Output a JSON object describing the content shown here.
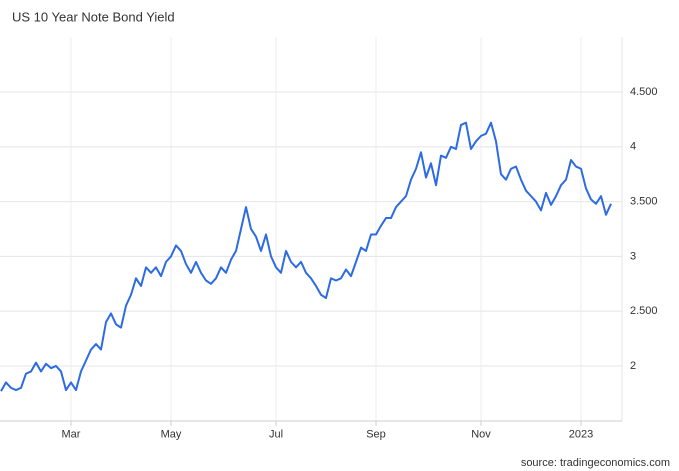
{
  "chart_data": {
    "type": "line",
    "title": "US 10 Year Note Bond Yield",
    "source": "source: tradingeconomics.com",
    "categories": [
      null,
      null,
      null,
      null,
      null,
      null,
      null,
      null,
      null,
      null,
      null,
      null,
      null,
      null,
      "Mar",
      null,
      null,
      null,
      null,
      null,
      null,
      null,
      null,
      null,
      null,
      null,
      null,
      null,
      null,
      null,
      null,
      null,
      null,
      null,
      "May",
      null,
      null,
      null,
      null,
      null,
      null,
      null,
      null,
      null,
      null,
      null,
      null,
      null,
      null,
      null,
      null,
      null,
      null,
      null,
      null,
      "Jul",
      null,
      null,
      null,
      null,
      null,
      null,
      null,
      null,
      null,
      null,
      null,
      null,
      null,
      null,
      null,
      null,
      null,
      null,
      null,
      "Sep",
      null,
      null,
      null,
      null,
      null,
      null,
      null,
      null,
      null,
      null,
      null,
      null,
      null,
      null,
      null,
      null,
      null,
      null,
      null,
      null,
      "Nov",
      null,
      null,
      null,
      null,
      null,
      null,
      null,
      null,
      null,
      null,
      null,
      null,
      null,
      null,
      null,
      null,
      null,
      null,
      null,
      "2023",
      null,
      null,
      null,
      null,
      null,
      null
    ],
    "series": [
      {
        "name": "US 10 Year Note Bond Yield",
        "color": "#2d6be4",
        "values": [
          1.77,
          1.85,
          1.8,
          1.78,
          1.8,
          1.93,
          1.95,
          2.03,
          1.95,
          2.02,
          1.98,
          2.0,
          1.95,
          1.78,
          1.85,
          1.78,
          1.95,
          2.05,
          2.15,
          2.2,
          2.15,
          2.4,
          2.48,
          2.38,
          2.35,
          2.55,
          2.65,
          2.8,
          2.73,
          2.9,
          2.85,
          2.9,
          2.82,
          2.95,
          3.0,
          3.1,
          3.05,
          2.93,
          2.85,
          2.95,
          2.85,
          2.78,
          2.75,
          2.8,
          2.9,
          2.85,
          2.97,
          3.05,
          3.25,
          3.45,
          3.25,
          3.18,
          3.05,
          3.2,
          3.0,
          2.9,
          2.85,
          3.05,
          2.95,
          2.9,
          2.95,
          2.85,
          2.8,
          2.73,
          2.65,
          2.62,
          2.8,
          2.78,
          2.8,
          2.88,
          2.82,
          2.95,
          3.08,
          3.05,
          3.2,
          3.2,
          3.28,
          3.35,
          3.35,
          3.45,
          3.5,
          3.55,
          3.7,
          3.8,
          3.95,
          3.72,
          3.85,
          3.65,
          3.92,
          3.9,
          4.0,
          3.98,
          4.2,
          4.22,
          3.98,
          4.05,
          4.1,
          4.12,
          4.22,
          4.05,
          3.75,
          3.7,
          3.8,
          3.82,
          3.7,
          3.6,
          3.55,
          3.5,
          3.42,
          3.58,
          3.47,
          3.55,
          3.65,
          3.7,
          3.88,
          3.82,
          3.8,
          3.62,
          3.52,
          3.48,
          3.55,
          3.38,
          3.48
        ]
      }
    ],
    "ylim": [
      1.5,
      5.0
    ],
    "yticks": [
      2,
      {
        "value": 2.5,
        "label": "2.500"
      },
      3,
      {
        "value": 3.5,
        "label": "3.500"
      },
      4,
      {
        "value": 4.5,
        "label": "4.500"
      }
    ],
    "grid": true
  }
}
